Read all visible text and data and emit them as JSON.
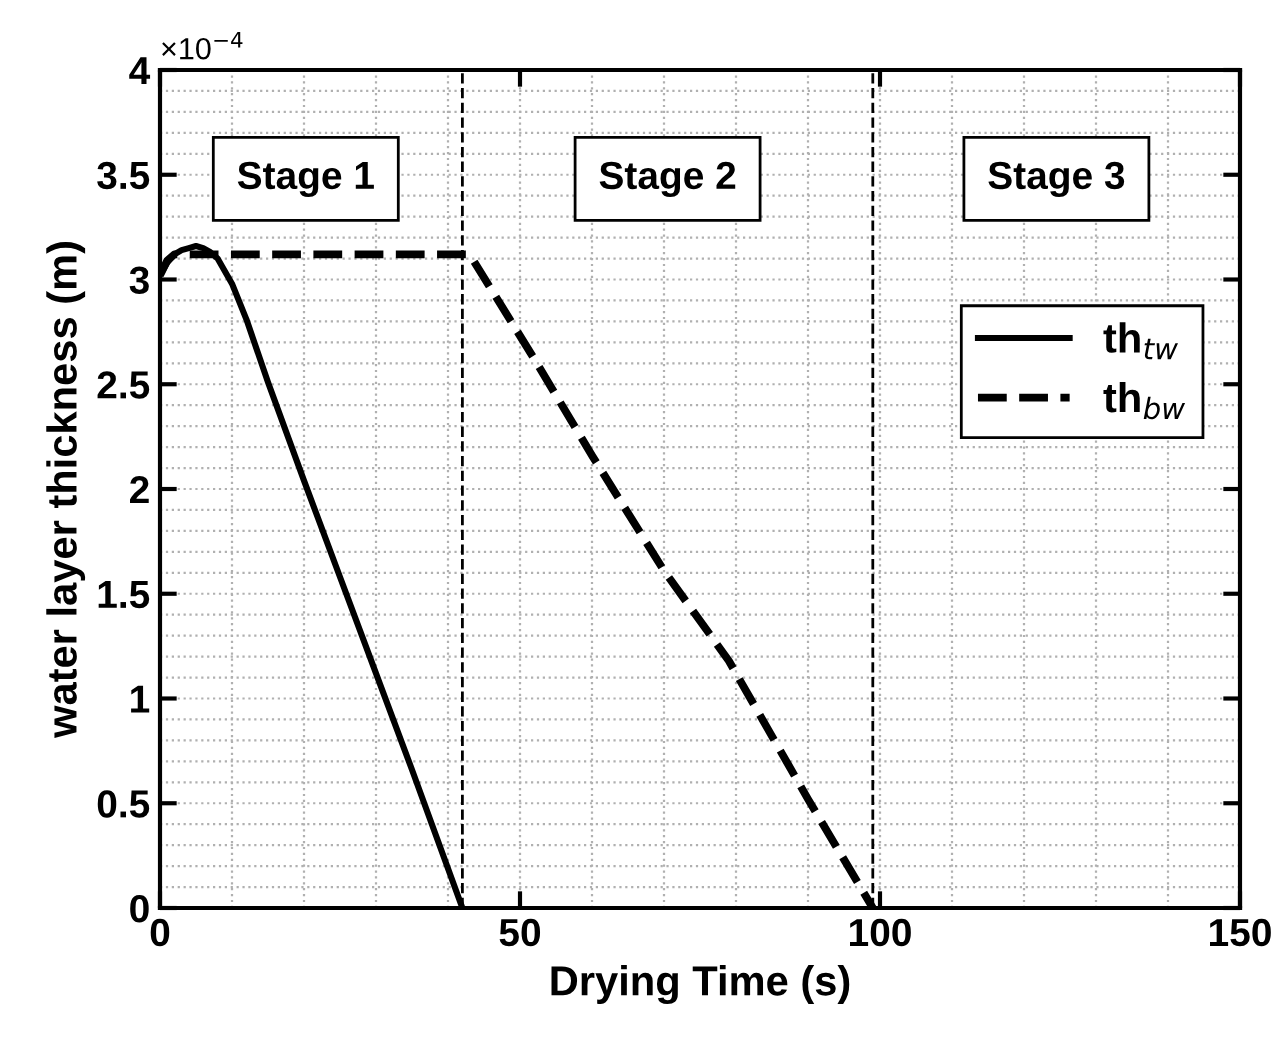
{
  "chart_data": {
    "type": "line",
    "xlabel": "Drying Time (s)",
    "ylabel": "water layer thickness (m)",
    "xlim": [
      0,
      150
    ],
    "xticks": [
      0,
      50,
      100,
      150
    ],
    "ylim": [
      0,
      4
    ],
    "yticks": [
      0,
      0.5,
      1,
      1.5,
      2,
      2.5,
      3,
      3.5,
      4
    ],
    "grid": true,
    "legend": "right",
    "series": [
      {
        "name": "th$_{tw}$",
        "color": "#000000",
        "line_style": "solid",
        "x": [
          0,
          1,
          2,
          3,
          4,
          5,
          6,
          7,
          8,
          10,
          12,
          15,
          20,
          25,
          30,
          35,
          42
        ],
        "values": [
          3.02,
          3.08,
          3.12,
          3.14,
          3.15,
          3.16,
          3.15,
          3.13,
          3.1,
          2.98,
          2.81,
          2.51,
          2.04,
          1.58,
          1.12,
          0.66,
          0.0
        ]
      },
      {
        "name": "th$_{bw}$",
        "color": "#000000",
        "line_style": "dashed",
        "x": [
          0,
          1,
          2,
          43,
          52,
          60,
          70,
          79,
          90,
          99
        ],
        "values": [
          3.02,
          3.09,
          3.12,
          3.12,
          2.62,
          2.16,
          1.61,
          1.18,
          0.52,
          0.0
        ]
      }
    ],
    "ref_lines": [
      {
        "axis": "x",
        "value": 42,
        "line_style": "dashed",
        "color": "#000000"
      },
      {
        "axis": "x",
        "value": 99,
        "line_style": "dashed",
        "color": "#000000"
      }
    ],
    "annotations": [
      "Stage 1",
      "Stage 2",
      "Stage 3",
      "×10$^{−4}$"
    ]
  }
}
